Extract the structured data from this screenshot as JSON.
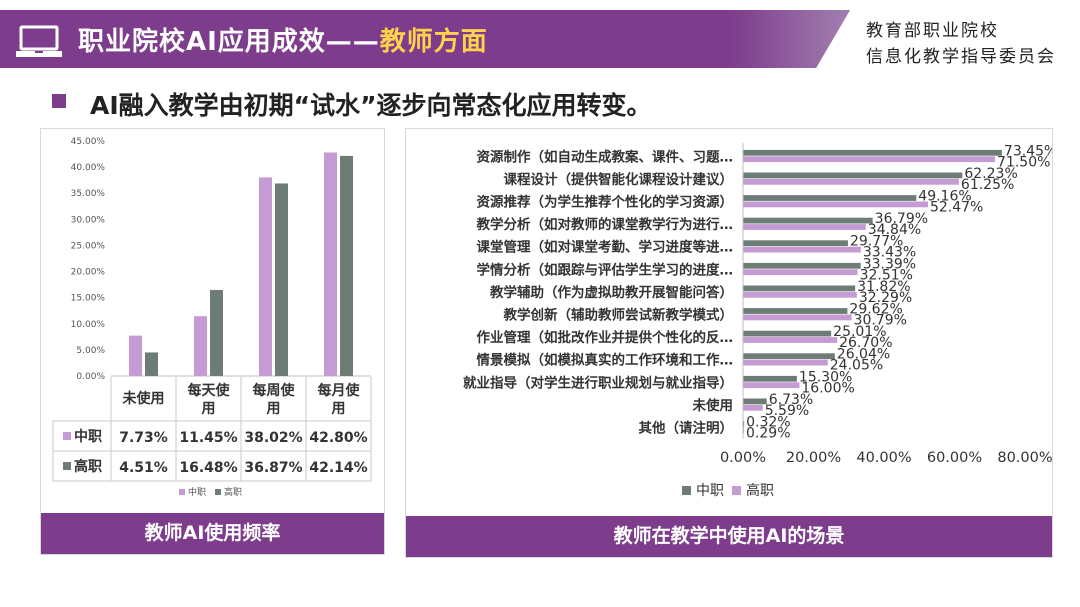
{
  "header": {
    "title_prefix": "职业院校AI应用成效——",
    "title_highlight": "教师方面",
    "org_line1": "教育部职业院校",
    "org_line2": "信息化教学指导委员会"
  },
  "subtitle": "AI融入教学由初期“试水”逐步向常态化应用转变。",
  "colors": {
    "brand": "#7d3c8c",
    "zhongzhi": "#c49bd2",
    "gaozhi": "#6d7d76",
    "highlight": "#ffd24a"
  },
  "icons": {
    "logo": "laptop-icon"
  },
  "chart_data": [
    {
      "type": "bar",
      "title": "教师AI使用频率",
      "categories": [
        "未使用",
        "每天使用",
        "每周使用",
        "每月使用"
      ],
      "series": [
        {
          "name": "中职",
          "values": [
            7.73,
            11.45,
            38.02,
            42.8
          ]
        },
        {
          "name": "高职",
          "values": [
            4.51,
            16.48,
            36.87,
            42.14
          ]
        }
      ],
      "ylim": [
        0,
        45
      ],
      "yticks": [
        "45.00%",
        "40.00%",
        "35.00%",
        "30.00%",
        "25.00%",
        "20.00%",
        "15.00%",
        "10.00%",
        "5.00%",
        "0.00%"
      ],
      "table_labels": [
        "中职",
        "高职"
      ],
      "table_values": [
        [
          "7.73%",
          "11.45%",
          "38.02%",
          "42.80%"
        ],
        [
          "4.51%",
          "16.48%",
          "36.87%",
          "42.14%"
        ]
      ],
      "legend": [
        "中职",
        "高职"
      ],
      "legend_position": "bottom",
      "xlabel": "",
      "ylabel": ""
    },
    {
      "type": "bar",
      "orientation": "horizontal",
      "title": "教师在教学中使用AI的场景",
      "categories": [
        "资源制作（如自动生成教案、课件、习题…",
        "课程设计（提供智能化课程设计建议）",
        "资源推荐（为学生推荐个性化的学习资源）",
        "教学分析（如对教师的课堂教学行为进行…",
        "课堂管理（如对课堂考勤、学习进度等进…",
        "学情分析（如跟踪与评估学生学习的进度…",
        "教学辅助（作为虚拟助教开展智能问答）",
        "教学创新（辅助教师尝试新教学模式）",
        "作业管理（如批改作业并提供个性化的反…",
        "情景模拟（如模拟真实的工作环境和工作…",
        "就业指导（对学生进行职业规划与就业指导）",
        "未使用",
        "其他（请注明）"
      ],
      "series": [
        {
          "name": "中职",
          "values": [
            73.45,
            62.23,
            49.16,
            36.79,
            29.77,
            33.39,
            31.82,
            29.62,
            25.01,
            26.04,
            15.3,
            6.73,
            0.32
          ]
        },
        {
          "name": "高职",
          "values": [
            71.5,
            61.25,
            52.47,
            34.84,
            33.43,
            32.51,
            32.29,
            30.79,
            26.7,
            24.05,
            16.0,
            5.59,
            0.29
          ]
        }
      ],
      "value_labels": {
        "中职": [
          "73.45%",
          "62.23%",
          "49.16%",
          "36.79%",
          "29.77%",
          "33.39%",
          "31.82%",
          "29.62%",
          "25.01%",
          "26.04%",
          "15.30%",
          "6.73%",
          "0.32%"
        ],
        "高职": [
          "71.50%",
          "61.25%",
          "52.47%",
          "34.84%",
          "33.43%",
          "32.51%",
          "32.29%",
          "30.79%",
          "26.70%",
          "24.05%",
          "16.00%",
          "5.59%",
          "0.29%"
        ]
      },
      "xlim": [
        0,
        80
      ],
      "xticks": [
        "0.00%",
        "20.00%",
        "40.00%",
        "60.00%",
        "80.00%"
      ],
      "legend": [
        "中职",
        "高职"
      ],
      "legend_position": "bottom",
      "xlabel": "",
      "ylabel": ""
    }
  ]
}
